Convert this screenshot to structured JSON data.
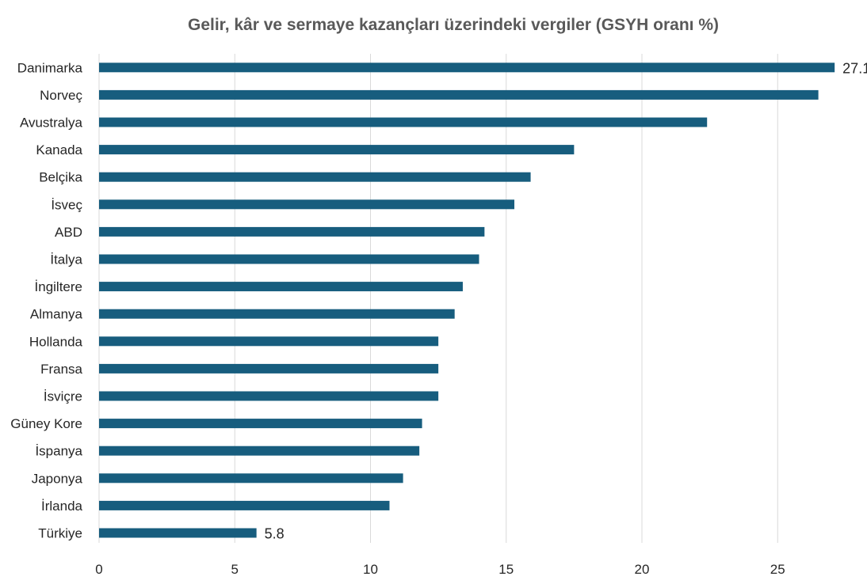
{
  "chart_data": {
    "type": "bar",
    "orientation": "horizontal",
    "title": "Gelir, kâr ve sermaye kazançları üzerindeki vergiler (GSYH oranı %)",
    "xlabel": "",
    "ylabel": "",
    "categories": [
      "Danimarka",
      "Norveç",
      "Avustralya",
      "Kanada",
      "Belçika",
      "İsveç",
      "ABD",
      "İtalya",
      "İngiltere",
      "Almanya",
      "Hollanda",
      "Fransa",
      "İsviçre",
      "Güney Kore",
      "İspanya",
      "Japonya",
      "İrlanda",
      "Türkiye"
    ],
    "values": [
      27.1,
      26.5,
      22.4,
      17.5,
      15.9,
      15.3,
      14.2,
      14.0,
      13.4,
      13.1,
      12.5,
      12.5,
      12.5,
      11.9,
      11.8,
      11.2,
      10.7,
      5.8
    ],
    "data_labels": [
      {
        "category": "Danimarka",
        "text": "27.1"
      },
      {
        "category": "Türkiye",
        "text": "5.8"
      }
    ],
    "xlim": [
      0,
      28
    ],
    "xticks": [
      0,
      5,
      10,
      15,
      20,
      25
    ],
    "grid": true,
    "legend": "none",
    "bar_color": "#175d7e"
  }
}
